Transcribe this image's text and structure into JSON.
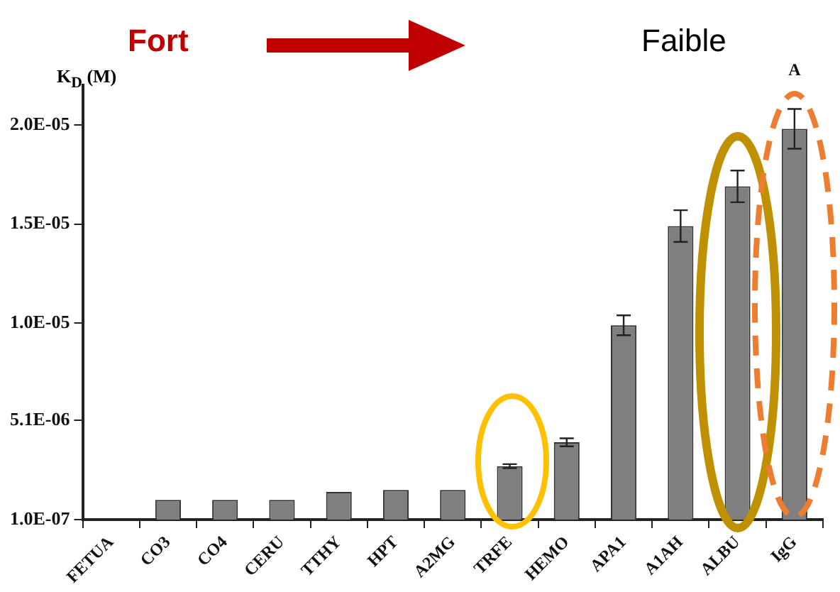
{
  "chart_data": {
    "type": "bar",
    "ylabel": "K$_{D}$ (M)",
    "categories": [
      "FETUA",
      "CO3",
      "CO4",
      "CERU",
      "TTHY",
      "HPT",
      "A2MG",
      "TRFE",
      "HEMO",
      "APA1",
      "A1AH",
      "ALBU",
      "IgG"
    ],
    "values": [
      null,
      1.1e-06,
      1.1e-06,
      1.1e-06,
      1.5e-06,
      1.6e-06,
      1.6e-06,
      2.8e-06,
      4e-06,
      9.9e-06,
      1.49e-05,
      1.69e-05,
      1.98e-05
    ],
    "errors": [
      null,
      null,
      null,
      null,
      null,
      null,
      null,
      1e-07,
      2e-07,
      5e-07,
      8e-07,
      8e-07,
      1e-06
    ],
    "color": "#7f7f7f",
    "ylim": [
      1e-07,
      2.2e-05
    ],
    "yticks": [
      {
        "value": 1e-07,
        "label": "1.0E-07"
      },
      {
        "value": 5.1e-06,
        "label": "5.1E-06"
      },
      {
        "value": 1e-05,
        "label": "1.0E-05"
      },
      {
        "value": 1.5e-05,
        "label": "1.5E-05"
      },
      {
        "value": 2e-05,
        "label": "2.0E-05"
      }
    ],
    "grid": false,
    "legend": false,
    "annotations": [
      "Fort",
      "Faible",
      "A"
    ]
  }
}
